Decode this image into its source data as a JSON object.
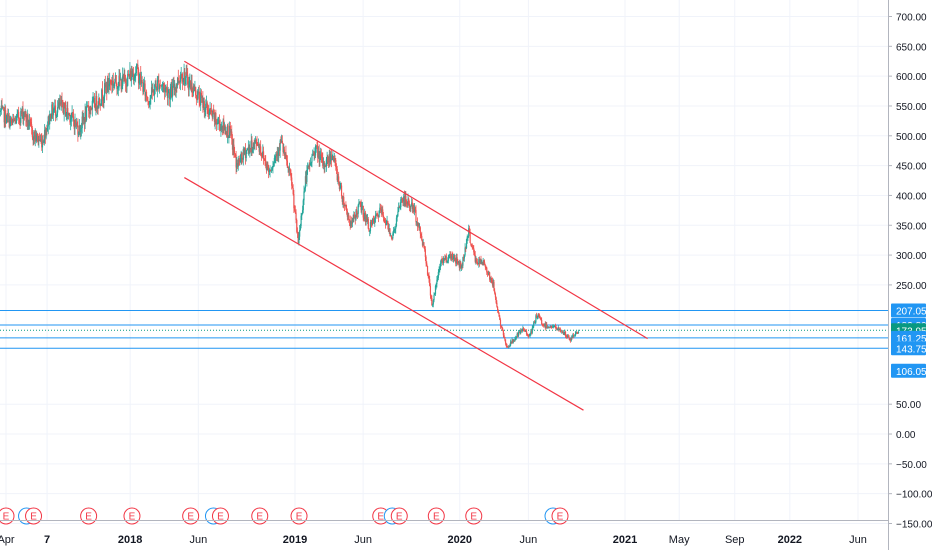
{
  "chart_data": {
    "type": "candlestick",
    "title": "",
    "xlabel": "",
    "ylabel": "",
    "ylim": [
      -150,
      760
    ],
    "y_ticks": [
      {
        "value": 700,
        "label": "700.00"
      },
      {
        "value": 650,
        "label": "650.00"
      },
      {
        "value": 600,
        "label": "600.00"
      },
      {
        "value": 550,
        "label": "550.00"
      },
      {
        "value": 500,
        "label": "500.00"
      },
      {
        "value": 450,
        "label": "450.00"
      },
      {
        "value": 400,
        "label": "400.00"
      },
      {
        "value": 350,
        "label": "350.00"
      },
      {
        "value": 300,
        "label": "300.00"
      },
      {
        "value": 250,
        "label": "250.00"
      },
      {
        "value": 50,
        "label": "50.00"
      },
      {
        "value": 0,
        "label": "0.00"
      },
      {
        "value": -50,
        "label": "−50.00"
      },
      {
        "value": -100,
        "label": "−100.00"
      },
      {
        "value": -150,
        "label": "−150.00"
      }
    ],
    "x_ticks": [
      {
        "date": "2017-04-01",
        "label": "Apr",
        "bold": false
      },
      {
        "date": "2017-07-01",
        "label": "7",
        "bold": true
      },
      {
        "date": "2018-01-01",
        "label": "2018",
        "bold": true
      },
      {
        "date": "2018-06-01",
        "label": "Jun",
        "bold": false
      },
      {
        "date": "2019-01-01",
        "label": "2019",
        "bold": true
      },
      {
        "date": "2019-06-01",
        "label": "Jun",
        "bold": false
      },
      {
        "date": "2020-01-01",
        "label": "2020",
        "bold": true
      },
      {
        "date": "2020-06-01",
        "label": "Jun",
        "bold": false
      },
      {
        "date": "2021-01-01",
        "label": "2021",
        "bold": true
      },
      {
        "date": "2021-05-01",
        "label": "May",
        "bold": false
      },
      {
        "date": "2021-09-01",
        "label": "Sep",
        "bold": false
      },
      {
        "date": "2022-01-01",
        "label": "2022",
        "bold": true
      },
      {
        "date": "2022-06-01",
        "label": "Jun",
        "bold": false
      }
    ],
    "price_path": [
      [
        "2017-03-20",
        540
      ],
      [
        "2017-04-15",
        520
      ],
      [
        "2017-05-10",
        540
      ],
      [
        "2017-06-01",
        500
      ],
      [
        "2017-06-20",
        490
      ],
      [
        "2017-07-10",
        540
      ],
      [
        "2017-08-01",
        550
      ],
      [
        "2017-08-20",
        535
      ],
      [
        "2017-09-10",
        510
      ],
      [
        "2017-10-01",
        545
      ],
      [
        "2017-10-25",
        560
      ],
      [
        "2017-11-15",
        590
      ],
      [
        "2017-12-15",
        590
      ],
      [
        "2018-01-15",
        610
      ],
      [
        "2018-02-10",
        560
      ],
      [
        "2018-03-05",
        590
      ],
      [
        "2018-04-01",
        570
      ],
      [
        "2018-04-25",
        605
      ],
      [
        "2018-05-20",
        580
      ],
      [
        "2018-06-15",
        550
      ],
      [
        "2018-07-10",
        525
      ],
      [
        "2018-08-10",
        505
      ],
      [
        "2018-08-25",
        450
      ],
      [
        "2018-09-15",
        475
      ],
      [
        "2018-10-10",
        490
      ],
      [
        "2018-11-05",
        440
      ],
      [
        "2018-12-01",
        490
      ],
      [
        "2018-12-25",
        420
      ],
      [
        "2019-01-08",
        320
      ],
      [
        "2019-01-25",
        430
      ],
      [
        "2019-02-15",
        480
      ],
      [
        "2019-03-05",
        450
      ],
      [
        "2019-03-25",
        470
      ],
      [
        "2019-04-15",
        400
      ],
      [
        "2019-05-05",
        350
      ],
      [
        "2019-05-25",
        385
      ],
      [
        "2019-06-15",
        345
      ],
      [
        "2019-07-10",
        375
      ],
      [
        "2019-08-05",
        330
      ],
      [
        "2019-08-25",
        395
      ],
      [
        "2019-09-20",
        380
      ],
      [
        "2019-10-15",
        310
      ],
      [
        "2019-11-01",
        215
      ],
      [
        "2019-11-20",
        290
      ],
      [
        "2019-12-15",
        300
      ],
      [
        "2020-01-05",
        280
      ],
      [
        "2020-01-20",
        340
      ],
      [
        "2020-02-05",
        290
      ],
      [
        "2020-02-25",
        285
      ],
      [
        "2020-03-15",
        250
      ],
      [
        "2020-04-01",
        180
      ],
      [
        "2020-04-15",
        145
      ],
      [
        "2020-05-01",
        160
      ],
      [
        "2020-05-20",
        175
      ],
      [
        "2020-06-05",
        165
      ],
      [
        "2020-06-20",
        200
      ],
      [
        "2020-07-05",
        182
      ],
      [
        "2020-07-25",
        180
      ],
      [
        "2020-08-15",
        172
      ],
      [
        "2020-09-01",
        158
      ],
      [
        "2020-09-20",
        174
      ]
    ],
    "upper_channel_line": {
      "from": [
        "2018-05-01",
        625
      ],
      "to": [
        "2021-02-20",
        160
      ]
    },
    "lower_channel_line": {
      "from": [
        "2018-05-01",
        430
      ],
      "to": [
        "2020-10-01",
        40
      ]
    },
    "horizontal_levels": [
      {
        "value": 207.05,
        "label": "207.05",
        "style": "solid"
      },
      {
        "value": 182.8,
        "label": "182.80",
        "style": "solid"
      },
      {
        "value": 173.95,
        "label": "173.95",
        "style": "dotted",
        "is_current_price": true
      },
      {
        "value": 161.25,
        "label": "161.25",
        "style": "solid"
      },
      {
        "value": 143.75,
        "label": "143.75",
        "style": "solid"
      },
      {
        "value": 106.05,
        "label": "106.05",
        "style": "none"
      }
    ],
    "earnings_markers": [
      {
        "date": "2017-04-01",
        "label": "E",
        "double": false
      },
      {
        "date": "2017-06-01",
        "label": "E",
        "double": true
      },
      {
        "date": "2017-10-01",
        "label": "E",
        "double": false
      },
      {
        "date": "2018-01-05",
        "label": "E",
        "double": false
      },
      {
        "date": "2018-05-15",
        "label": "E",
        "double": false
      },
      {
        "date": "2018-07-20",
        "label": "E",
        "double": true
      },
      {
        "date": "2018-10-15",
        "label": "E",
        "double": false
      },
      {
        "date": "2019-01-10",
        "label": "E",
        "double": false
      },
      {
        "date": "2019-07-10",
        "label": "E",
        "double": false
      },
      {
        "date": "2019-08-20",
        "label": "E",
        "double": true
      },
      {
        "date": "2019-11-10",
        "label": "E",
        "double": false
      },
      {
        "date": "2020-02-01",
        "label": "E",
        "double": false
      },
      {
        "date": "2020-08-10",
        "label": "E",
        "double": true
      }
    ],
    "colors": {
      "up": "#26a69a",
      "down": "#ef5350",
      "channel": "#f23645",
      "level": "#2196f3",
      "level_label_bg": "#2196f3",
      "current_label_bg": "#089981",
      "grid": "#f0f3fa",
      "axis_text": "#131722",
      "earnings": "#f23645",
      "earnings_alt": "#2196f3"
    }
  }
}
